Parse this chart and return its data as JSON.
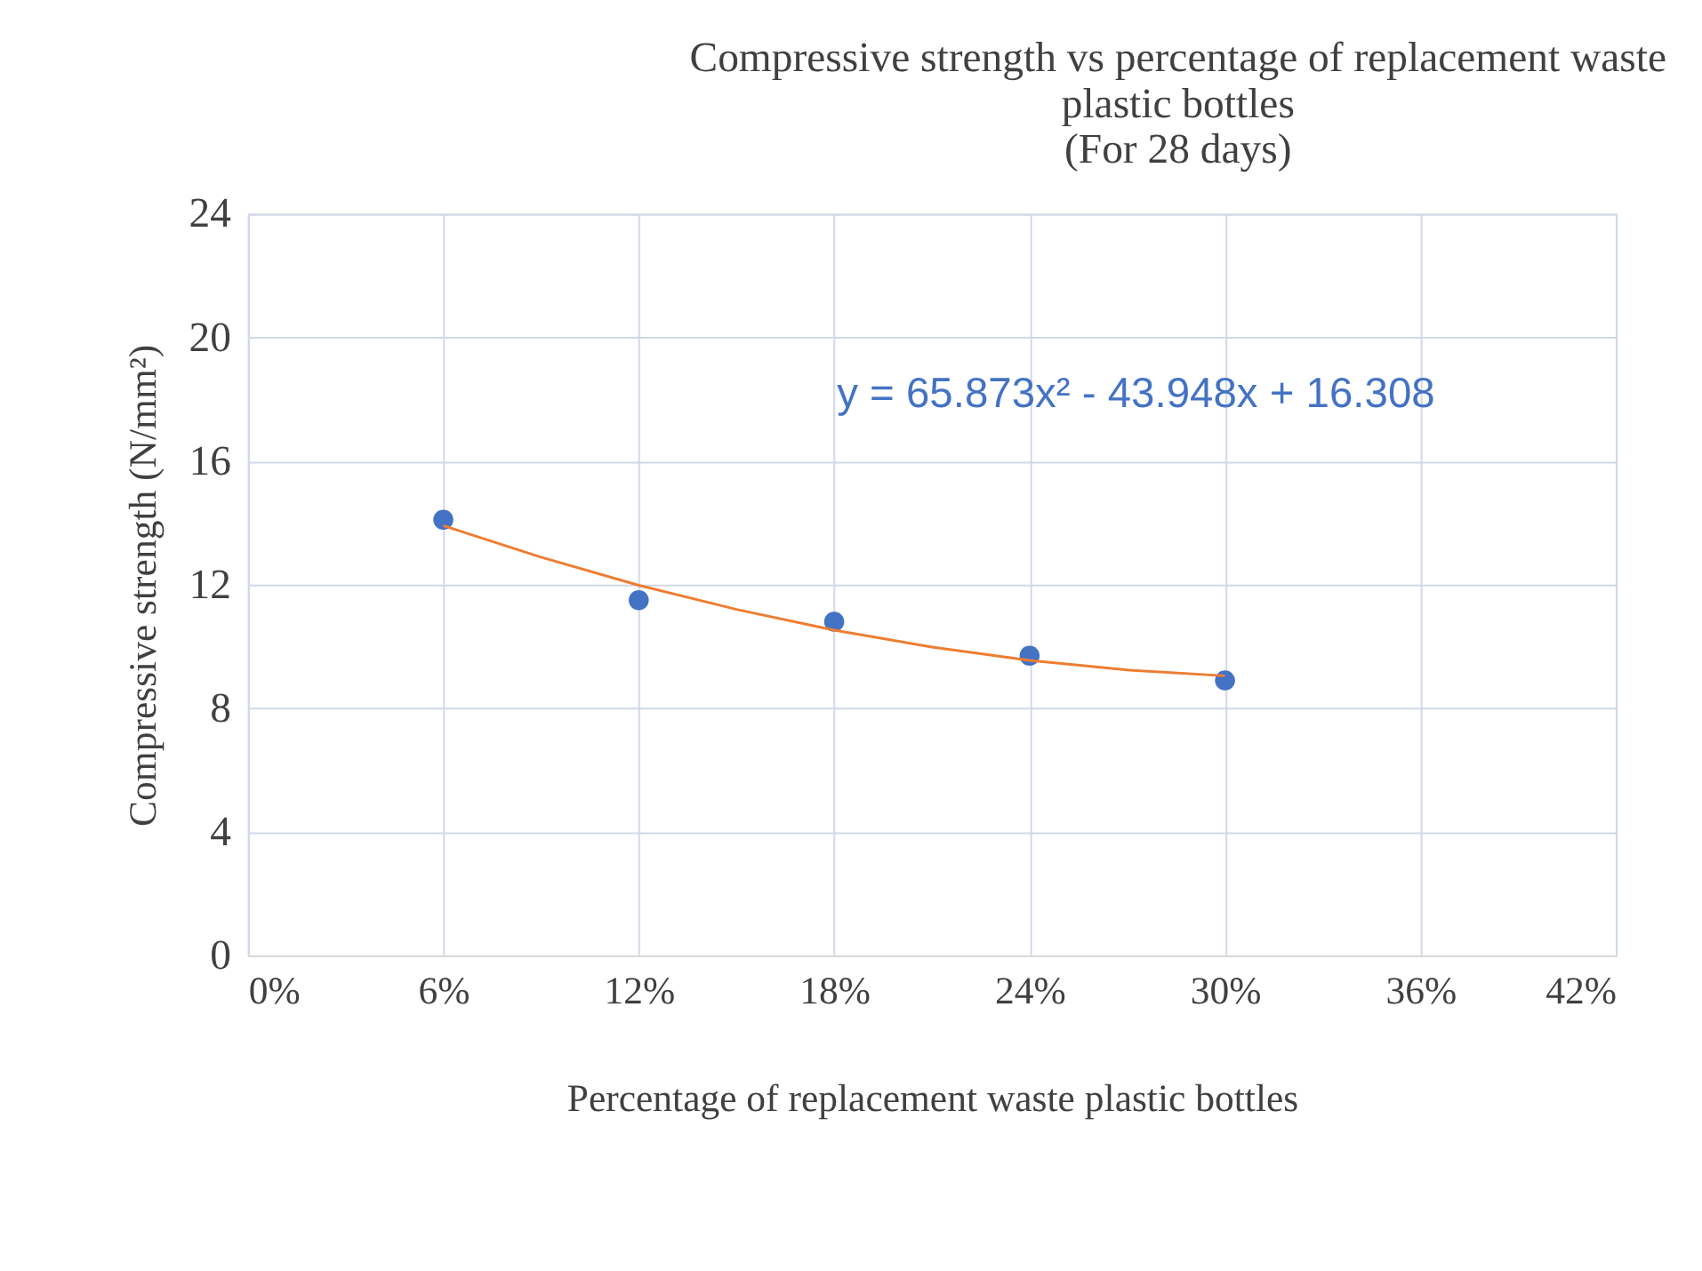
{
  "chart_data": {
    "type": "scatter",
    "title": "Compressive strength vs percentage of replacement waste\nplastic bottles\n(For 28 days)",
    "xlabel": "Percentage of replacement waste plastic bottles",
    "ylabel": "Compressive strength  (N/mm²)",
    "x": [
      0.06,
      0.12,
      0.18,
      0.24,
      0.3
    ],
    "series": [
      {
        "color": "#4472c4",
        "marker": "circle",
        "values": [
          14.1,
          11.5,
          10.8,
          9.7,
          8.9
        ]
      },
      {
        "type": "line",
        "color": "#ed7d31",
        "line_style": "solid",
        "x": [
          0.06,
          0.09,
          0.12,
          0.15,
          0.18,
          0.21,
          0.24,
          0.27,
          0.3
        ],
        "values": [
          13.91,
          12.89,
          11.98,
          11.2,
          10.53,
          9.98,
          9.55,
          9.24,
          9.05
        ]
      }
    ],
    "xlim": [
      0,
      0.42
    ],
    "xticks": [
      {
        "value": 0,
        "label": "0%"
      },
      {
        "value": 0.06,
        "label": "6%"
      },
      {
        "value": 0.12,
        "label": "12%"
      },
      {
        "value": 0.18,
        "label": "18%"
      },
      {
        "value": 0.24,
        "label": "24%"
      },
      {
        "value": 0.3,
        "label": "30%"
      },
      {
        "value": 0.36,
        "label": "36%"
      },
      {
        "value": 0.42,
        "label": "42%"
      }
    ],
    "ylim": [
      0,
      24
    ],
    "yticks": [
      0,
      4,
      8,
      12,
      16,
      20,
      24
    ],
    "grid": true,
    "annotations": [
      "y = 65.873x² - 43.948x + 16.308"
    ]
  }
}
